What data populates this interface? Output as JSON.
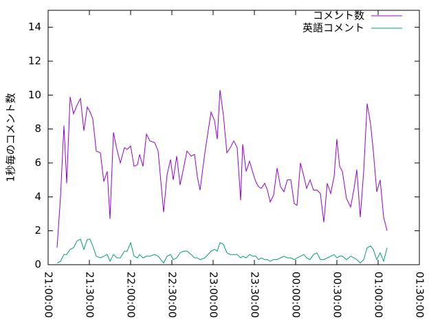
{
  "chart_data": {
    "type": "line",
    "ylabel": "1秒毎のコメント数",
    "x": [
      6.5,
      9,
      11.5,
      13.5,
      16,
      18.5,
      21,
      23.5,
      26,
      28.5,
      30.5,
      32.5,
      35,
      38,
      40.5,
      43,
      45,
      47.5,
      50,
      52.5,
      55.5,
      57.5,
      60,
      62.5,
      65,
      66.5,
      69,
      71.5,
      74,
      77.5,
      80,
      84,
      86.5,
      89,
      91,
      93.5,
      96,
      98.5,
      101,
      104,
      106.5,
      108.5,
      110.5,
      114,
      118.5,
      121,
      123,
      125,
      127.5,
      130,
      132.5,
      135,
      137.5,
      140,
      141.5,
      144,
      146.5,
      149,
      151,
      153,
      155,
      157.5,
      159.5,
      161.5,
      164,
      166.5,
      169,
      171.5,
      174,
      176.5,
      179,
      181,
      183.5,
      186,
      188,
      190.5,
      193,
      195.5,
      198,
      200.5,
      203,
      205.5,
      208,
      210,
      212,
      214,
      217,
      220,
      222.5,
      224.5,
      227,
      229.5,
      232,
      234.5,
      236.5,
      239,
      241.5,
      244,
      246.5
    ],
    "series": [
      {
        "name": "コメント数",
        "color": "#9400d3",
        "values": [
          1.0,
          4.0,
          8.2,
          4.8,
          9.9,
          8.9,
          9.4,
          9.8,
          7.9,
          9.3,
          9.0,
          8.6,
          6.7,
          6.6,
          4.9,
          5.5,
          2.7,
          7.8,
          6.8,
          6.0,
          6.9,
          6.8,
          7.0,
          5.8,
          5.9,
          6.5,
          5.8,
          7.7,
          7.3,
          7.2,
          6.7,
          3.1,
          5.3,
          6.2,
          5.0,
          6.4,
          4.7,
          5.7,
          6.7,
          6.4,
          6.5,
          5.2,
          4.4,
          6.6,
          9.0,
          8.5,
          7.4,
          10.3,
          8.8,
          6.6,
          6.9,
          7.3,
          6.9,
          3.8,
          7.1,
          5.5,
          6.1,
          5.4,
          4.9,
          4.6,
          4.5,
          4.8,
          4.4,
          3.7,
          4.1,
          5.7,
          4.6,
          4.3,
          5.0,
          5.0,
          3.6,
          3.5,
          6.0,
          5.2,
          4.5,
          5.0,
          4.4,
          4.4,
          4.2,
          2.5,
          4.8,
          4.2,
          5.2,
          7.4,
          5.8,
          5.5,
          3.9,
          3.4,
          4.5,
          5.6,
          2.8,
          5.5,
          9.5,
          8.3,
          6.7,
          4.3,
          5.0,
          2.8,
          2.0
        ]
      },
      {
        "name": "英語コメント",
        "color": "#009e73",
        "values": [
          0.1,
          0.2,
          0.6,
          0.6,
          0.9,
          1.0,
          1.4,
          1.5,
          0.9,
          1.5,
          1.5,
          1.1,
          0.5,
          0.4,
          0.5,
          0.6,
          0.2,
          0.6,
          0.4,
          0.4,
          0.8,
          0.8,
          1.3,
          0.5,
          0.4,
          0.6,
          0.4,
          0.5,
          0.5,
          0.6,
          0.5,
          0.1,
          0.5,
          0.6,
          0.3,
          0.4,
          0.7,
          0.8,
          0.8,
          0.6,
          0.4,
          0.4,
          0.3,
          0.4,
          0.8,
          0.9,
          0.8,
          1.3,
          1.2,
          0.7,
          0.6,
          0.6,
          0.6,
          0.4,
          0.5,
          0.4,
          0.6,
          0.5,
          0.5,
          0.3,
          0.4,
          0.3,
          0.3,
          0.2,
          0.3,
          0.3,
          0.4,
          0.5,
          0.4,
          0.4,
          0.3,
          0.4,
          0.5,
          0.6,
          0.4,
          0.3,
          0.6,
          0.7,
          0.3,
          0.3,
          0.4,
          0.5,
          0.6,
          0.4,
          0.5,
          0.5,
          0.3,
          0.5,
          0.4,
          0.3,
          0.1,
          0.3,
          1.0,
          1.1,
          0.9,
          0.3,
          0.7,
          0.2,
          1.0
        ]
      }
    ],
    "xlim": [
      0,
      270
    ],
    "xticks": [
      {
        "value": 0,
        "label": "21:00:00"
      },
      {
        "value": 30,
        "label": "21:30:00"
      },
      {
        "value": 60,
        "label": "22:00:00"
      },
      {
        "value": 90,
        "label": "22:30:00"
      },
      {
        "value": 120,
        "label": "23:00:00"
      },
      {
        "value": 150,
        "label": "23:30:00"
      },
      {
        "value": 180,
        "label": "00:00:00"
      },
      {
        "value": 210,
        "label": "00:30:00"
      },
      {
        "value": 240,
        "label": "01:00:00"
      },
      {
        "value": 270,
        "label": "01:30:00"
      }
    ],
    "ylim": [
      0,
      15
    ],
    "yticks": [
      0,
      2,
      4,
      6,
      8,
      10,
      12,
      14
    ],
    "legend": "top-right"
  }
}
